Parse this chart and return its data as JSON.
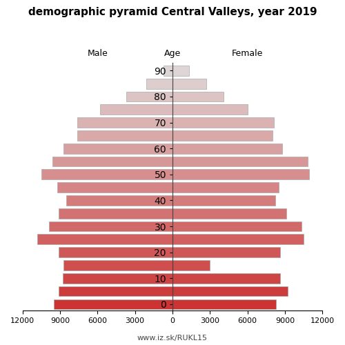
{
  "title": "demographic pyramid Central Valleys, year 2019",
  "male_values": [
    9500,
    9100,
    8800,
    8700,
    9100,
    10800,
    9900,
    9100,
    8500,
    9200,
    10500,
    9600,
    8700,
    7600,
    7600,
    5800,
    3700,
    2100,
    700
  ],
  "female_values": [
    8300,
    9200,
    8600,
    3000,
    8600,
    10500,
    10300,
    9100,
    8200,
    8500,
    10900,
    10800,
    8800,
    8000,
    8100,
    6000,
    4100,
    2700,
    1300
  ],
  "age_groups": [
    0,
    5,
    10,
    15,
    20,
    25,
    30,
    35,
    40,
    45,
    50,
    55,
    60,
    65,
    70,
    75,
    80,
    85,
    90
  ],
  "xlim": 12000,
  "xticks": [
    12000,
    9000,
    6000,
    3000,
    0,
    3000,
    6000,
    9000,
    12000
  ],
  "bar_height": 0.85,
  "label_male": "Male",
  "label_female": "Female",
  "label_age": "Age",
  "footer": "www.iz.sk/RUKL15",
  "bg_color": "#ffffff",
  "color_young_r": 0.8,
  "color_young_g": 0.2,
  "color_young_b": 0.2,
  "color_old_r": 0.87,
  "color_old_g": 0.84,
  "color_old_b": 0.84,
  "edge_color": "#aaaaaa",
  "edge_lw": 0.5,
  "title_fontsize": 11,
  "label_fontsize": 9,
  "tick_fontsize": 8,
  "footer_fontsize": 8
}
